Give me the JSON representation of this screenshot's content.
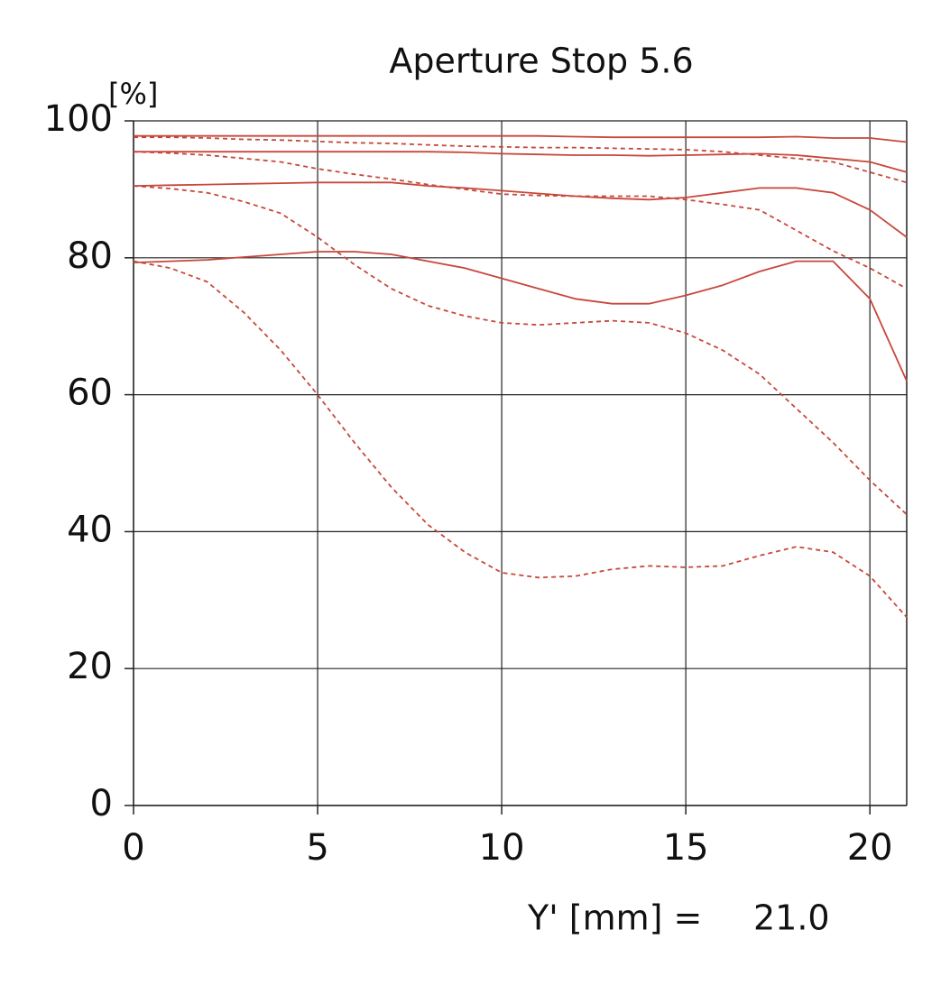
{
  "chart_data": {
    "type": "line",
    "title": "Aperture Stop 5.6",
    "ylabel": "[%]",
    "xlabel": "Y' [mm] =",
    "annotation": "21.0",
    "x": [
      0,
      1,
      2,
      3,
      4,
      5,
      6,
      7,
      8,
      9,
      10,
      11,
      12,
      13,
      14,
      15,
      16,
      17,
      18,
      19,
      20,
      21
    ],
    "xlim": [
      0,
      21
    ],
    "ylim": [
      0,
      100
    ],
    "xticks": [
      0,
      5,
      10,
      15,
      20
    ],
    "yticks": [
      0,
      20,
      40,
      60,
      80,
      100
    ],
    "grid": true,
    "series": [
      {
        "color": "#c8473b",
        "style": "solid",
        "values": [
          97.8,
          97.8,
          97.8,
          97.8,
          97.8,
          97.8,
          97.8,
          97.8,
          97.8,
          97.8,
          97.8,
          97.8,
          97.7,
          97.6,
          97.6,
          97.6,
          97.6,
          97.6,
          97.7,
          97.5,
          97.5,
          96.9
        ]
      },
      {
        "color": "#c8473b",
        "style": "solid",
        "values": [
          95.5,
          95.5,
          95.5,
          95.5,
          95.5,
          95.5,
          95.5,
          95.5,
          95.5,
          95.4,
          95.2,
          95.1,
          95,
          95,
          94.9,
          95,
          95.1,
          95.2,
          95,
          94.5,
          94,
          92.5
        ]
      },
      {
        "color": "#c8473b",
        "style": "solid",
        "values": [
          90.5,
          90.6,
          90.7,
          90.8,
          90.9,
          91,
          91,
          91,
          90.5,
          90.2,
          89.8,
          89.4,
          89,
          88.7,
          88.5,
          88.8,
          89.5,
          90.2,
          90.2,
          89.5,
          87,
          83
        ]
      },
      {
        "color": "#c8473b",
        "style": "solid",
        "values": [
          79.3,
          79.5,
          79.7,
          80.1,
          80.5,
          80.9,
          80.9,
          80.5,
          79.5,
          78.5,
          77,
          75.5,
          74,
          73.3,
          73.3,
          74.5,
          76,
          78,
          79.5,
          79.5,
          74,
          62
        ]
      },
      {
        "color": "#c8473b",
        "style": "dashed",
        "values": [
          97.6,
          97.6,
          97.5,
          97.3,
          97.2,
          97,
          96.8,
          96.7,
          96.5,
          96.3,
          96.2,
          96.1,
          96.1,
          96,
          95.9,
          95.8,
          95.5,
          95,
          94.5,
          94,
          92.5,
          91
        ]
      },
      {
        "color": "#c8473b",
        "style": "dashed",
        "values": [
          95.5,
          95.3,
          95,
          94.5,
          94,
          93,
          92.2,
          91.5,
          90.7,
          90,
          89.3,
          89.1,
          89,
          89,
          89,
          88.5,
          87.8,
          87,
          84,
          81,
          78.5,
          75.5
        ]
      },
      {
        "color": "#c8473b",
        "style": "dashed",
        "values": [
          90.5,
          90.1,
          89.5,
          88.2,
          86.5,
          83,
          79,
          75.5,
          73,
          71.5,
          70.5,
          70.2,
          70.5,
          70.8,
          70.5,
          69,
          66.5,
          63,
          58,
          53,
          47.5,
          42.5
        ]
      },
      {
        "color": "#c8473b",
        "style": "dashed",
        "values": [
          79.5,
          78.5,
          76.5,
          72,
          66.5,
          60,
          53,
          46.5,
          41,
          37,
          34,
          33.3,
          33.5,
          34.5,
          35,
          34.8,
          35,
          36.5,
          37.8,
          37,
          33.5,
          27.5
        ]
      }
    ]
  }
}
